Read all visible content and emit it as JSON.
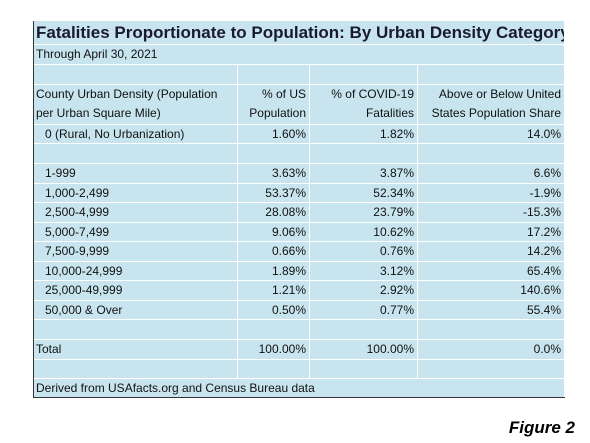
{
  "title": "Fatalities Proportionate to Population: By Urban Density Category",
  "subtitle": "Through April 30, 2021",
  "header": [
    [
      "County Urban Density (Population",
      "per Urban Square Mile)"
    ],
    [
      "% of US",
      "Population"
    ],
    [
      "% of COVID-19",
      "Fatalities"
    ],
    [
      "Above or Below United",
      "States Population Share"
    ]
  ],
  "rows": [
    [
      "0 (Rural, No Urbanization)",
      "1.60%",
      "1.82%",
      "14.0%"
    ],
    [
      "1-999",
      "3.63%",
      "3.87%",
      "6.6%"
    ],
    [
      "1,000-2,499",
      "53.37%",
      "52.34%",
      "-1.9%"
    ],
    [
      "2,500-4,999",
      "28.08%",
      "23.79%",
      "-15.3%"
    ],
    [
      "5,000-7,499",
      "9.06%",
      "10.62%",
      "17.2%"
    ],
    [
      "7,500-9,999",
      "0.66%",
      "0.76%",
      "14.2%"
    ],
    [
      "10,000-24,999",
      "1.89%",
      "3.12%",
      "65.4%"
    ],
    [
      "25,000-49,999",
      "1.21%",
      "2.92%",
      "140.6%"
    ],
    [
      "50,000 & Over",
      "0.50%",
      "0.77%",
      "55.4%"
    ],
    [
      "Total",
      "100.00%",
      "100.00%",
      "0.0%"
    ]
  ],
  "footnote": "Derived from USAfacts.org and Census Bureau data",
  "figure_label": "Figure 2"
}
